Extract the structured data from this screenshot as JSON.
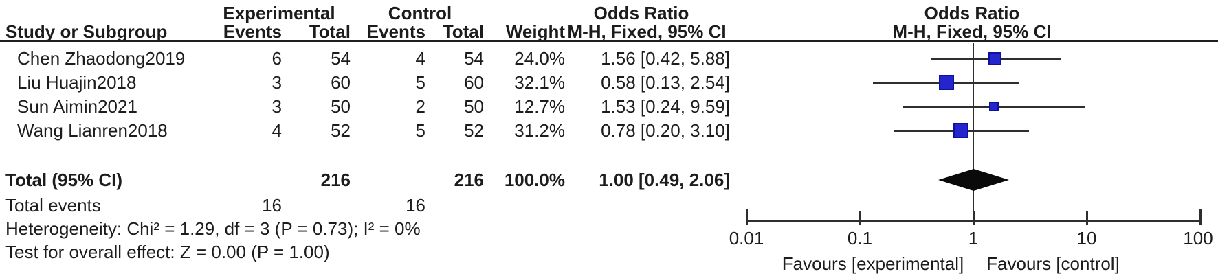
{
  "header": {
    "experimental": "Experimental",
    "control": "Control",
    "odds_ratio": "Odds Ratio",
    "odds_ratio_plot": "Odds Ratio",
    "study": "Study or Subgroup",
    "events_exp": "Events",
    "total_exp": "Total",
    "events_ctl": "Events",
    "total_ctl": "Total",
    "weight": "Weight",
    "mh_ci": "M-H, Fixed, 95% CI",
    "mh_ci_plot": "M-H, Fixed, 95% CI"
  },
  "chart_data": {
    "type": "forest",
    "effect_measure": "Odds Ratio",
    "method": "M-H, Fixed, 95% CI",
    "x_scale": "log10",
    "x_axis_range": [
      0.01,
      100
    ],
    "x_ticks": [
      0.01,
      0.1,
      1,
      10,
      100
    ],
    "x_tick_labels": [
      "0.01",
      "0.1",
      "1",
      "10",
      "100"
    ],
    "favours_left": "Favours [experimental]",
    "favours_right": "Favours [control]",
    "marker_color": "#2525cd",
    "diamond_color": "#0a0a0a",
    "studies": [
      {
        "name": "Chen Zhaodong2019",
        "events_exp": 6,
        "total_exp": 54,
        "events_ctl": 4,
        "total_ctl": 54,
        "weight_pct": 24.0,
        "weight_label": "24.0%",
        "or": 1.56,
        "ci_low": 0.42,
        "ci_high": 5.88,
        "or_ci_label": "1.56 [0.42, 5.88]"
      },
      {
        "name": "Liu Huajin2018",
        "events_exp": 3,
        "total_exp": 60,
        "events_ctl": 5,
        "total_ctl": 60,
        "weight_pct": 32.1,
        "weight_label": "32.1%",
        "or": 0.58,
        "ci_low": 0.13,
        "ci_high": 2.54,
        "or_ci_label": "0.58 [0.13, 2.54]"
      },
      {
        "name": "Sun Aimin2021",
        "events_exp": 3,
        "total_exp": 50,
        "events_ctl": 2,
        "total_ctl": 50,
        "weight_pct": 12.7,
        "weight_label": "12.7%",
        "or": 1.53,
        "ci_low": 0.24,
        "ci_high": 9.59,
        "or_ci_label": "1.53 [0.24, 9.59]"
      },
      {
        "name": "Wang Lianren2018",
        "events_exp": 4,
        "total_exp": 52,
        "events_ctl": 5,
        "total_ctl": 52,
        "weight_pct": 31.2,
        "weight_label": "31.2%",
        "or": 0.78,
        "ci_low": 0.2,
        "ci_high": 3.1,
        "or_ci_label": "0.78 [0.20, 3.10]"
      }
    ],
    "total": {
      "label": "Total (95% CI)",
      "total_exp": 216,
      "total_ctl": 216,
      "weight_label": "100.0%",
      "or": 1.0,
      "ci_low": 0.49,
      "ci_high": 2.06,
      "or_ci_label": "1.00 [0.49, 2.06]"
    },
    "total_events": {
      "label": "Total events",
      "exp": 16,
      "ctl": 16
    },
    "heterogeneity": "Heterogeneity: Chi² = 1.29, df = 3 (P = 0.73); I² = 0%",
    "overall_effect": "Test for overall effect: Z = 0.00 (P = 1.00)"
  }
}
